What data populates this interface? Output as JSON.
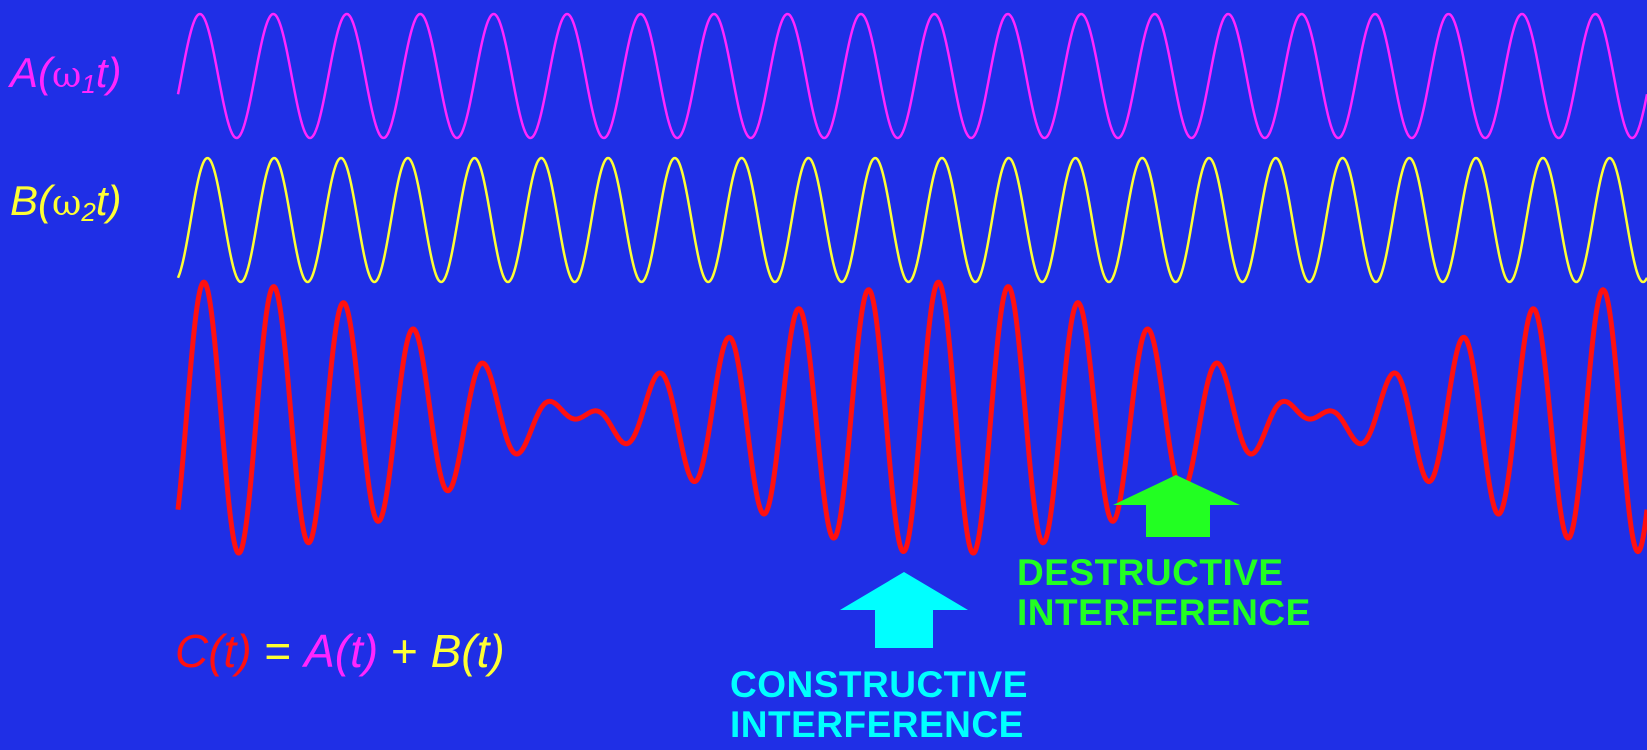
{
  "colors": {
    "background": "#1f2fe6",
    "wave_a": "#ff26ff",
    "wave_b": "#ffff33",
    "wave_c": "#ff1010",
    "constructive": "#00ffff",
    "destructive": "#22ff22"
  },
  "labels": {
    "a": {
      "name": "A(",
      "omega": "ω",
      "sub": "1",
      "tail": "t)"
    },
    "b": {
      "name": "B(",
      "omega": "ω",
      "sub": "2",
      "tail": "t)"
    }
  },
  "formula": {
    "c": "C(t)",
    "eq": " = ",
    "a": "A(t)",
    "plus": " + ",
    "b": "B(t)"
  },
  "annotations": {
    "constructive": {
      "line1": "CONSTRUCTIVE",
      "line2": "INTERFERENCE"
    },
    "destructive": {
      "line1": "DESTRUCTIVE",
      "line2": "INTERFERENCE"
    }
  },
  "waves": {
    "a_cycles": 20,
    "b_cycles": 22
  }
}
